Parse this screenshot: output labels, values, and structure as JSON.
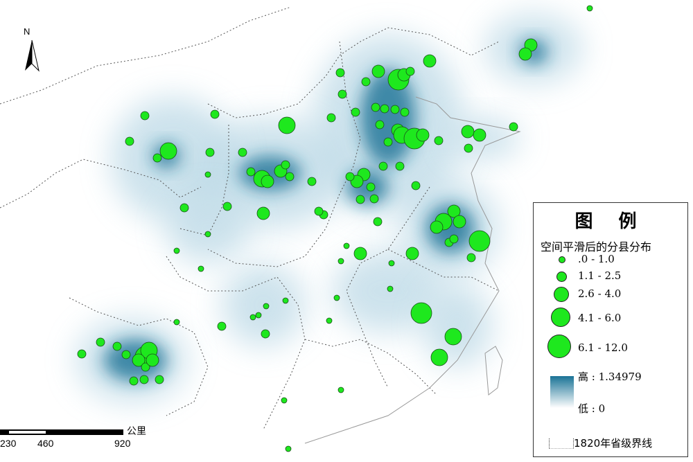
{
  "map": {
    "north_label": "N",
    "scale_bar": {
      "ticks": [
        "230",
        "460",
        "920"
      ],
      "unit": "公里"
    },
    "colors": {
      "heat_high": "#1a7396",
      "heat_low": "#ffffff",
      "marker_fill": "#1ee81e",
      "marker_stroke": "#1a4d1a",
      "border": "#555555"
    }
  },
  "legend": {
    "title": "图 例",
    "subtitle": "空间平滑后的分县分布",
    "classes": [
      {
        "label": ".0 - 1.0"
      },
      {
        "label": "1.1 - 2.5"
      },
      {
        "label": "2.6 - 4.0"
      },
      {
        "label": "4.1 - 6.0"
      },
      {
        "label": "6.1 - 12.0"
      }
    ],
    "density_high": "高 : 1.34979",
    "density_low": "低 : 0",
    "boundary_label": "1820年省级界线"
  }
}
